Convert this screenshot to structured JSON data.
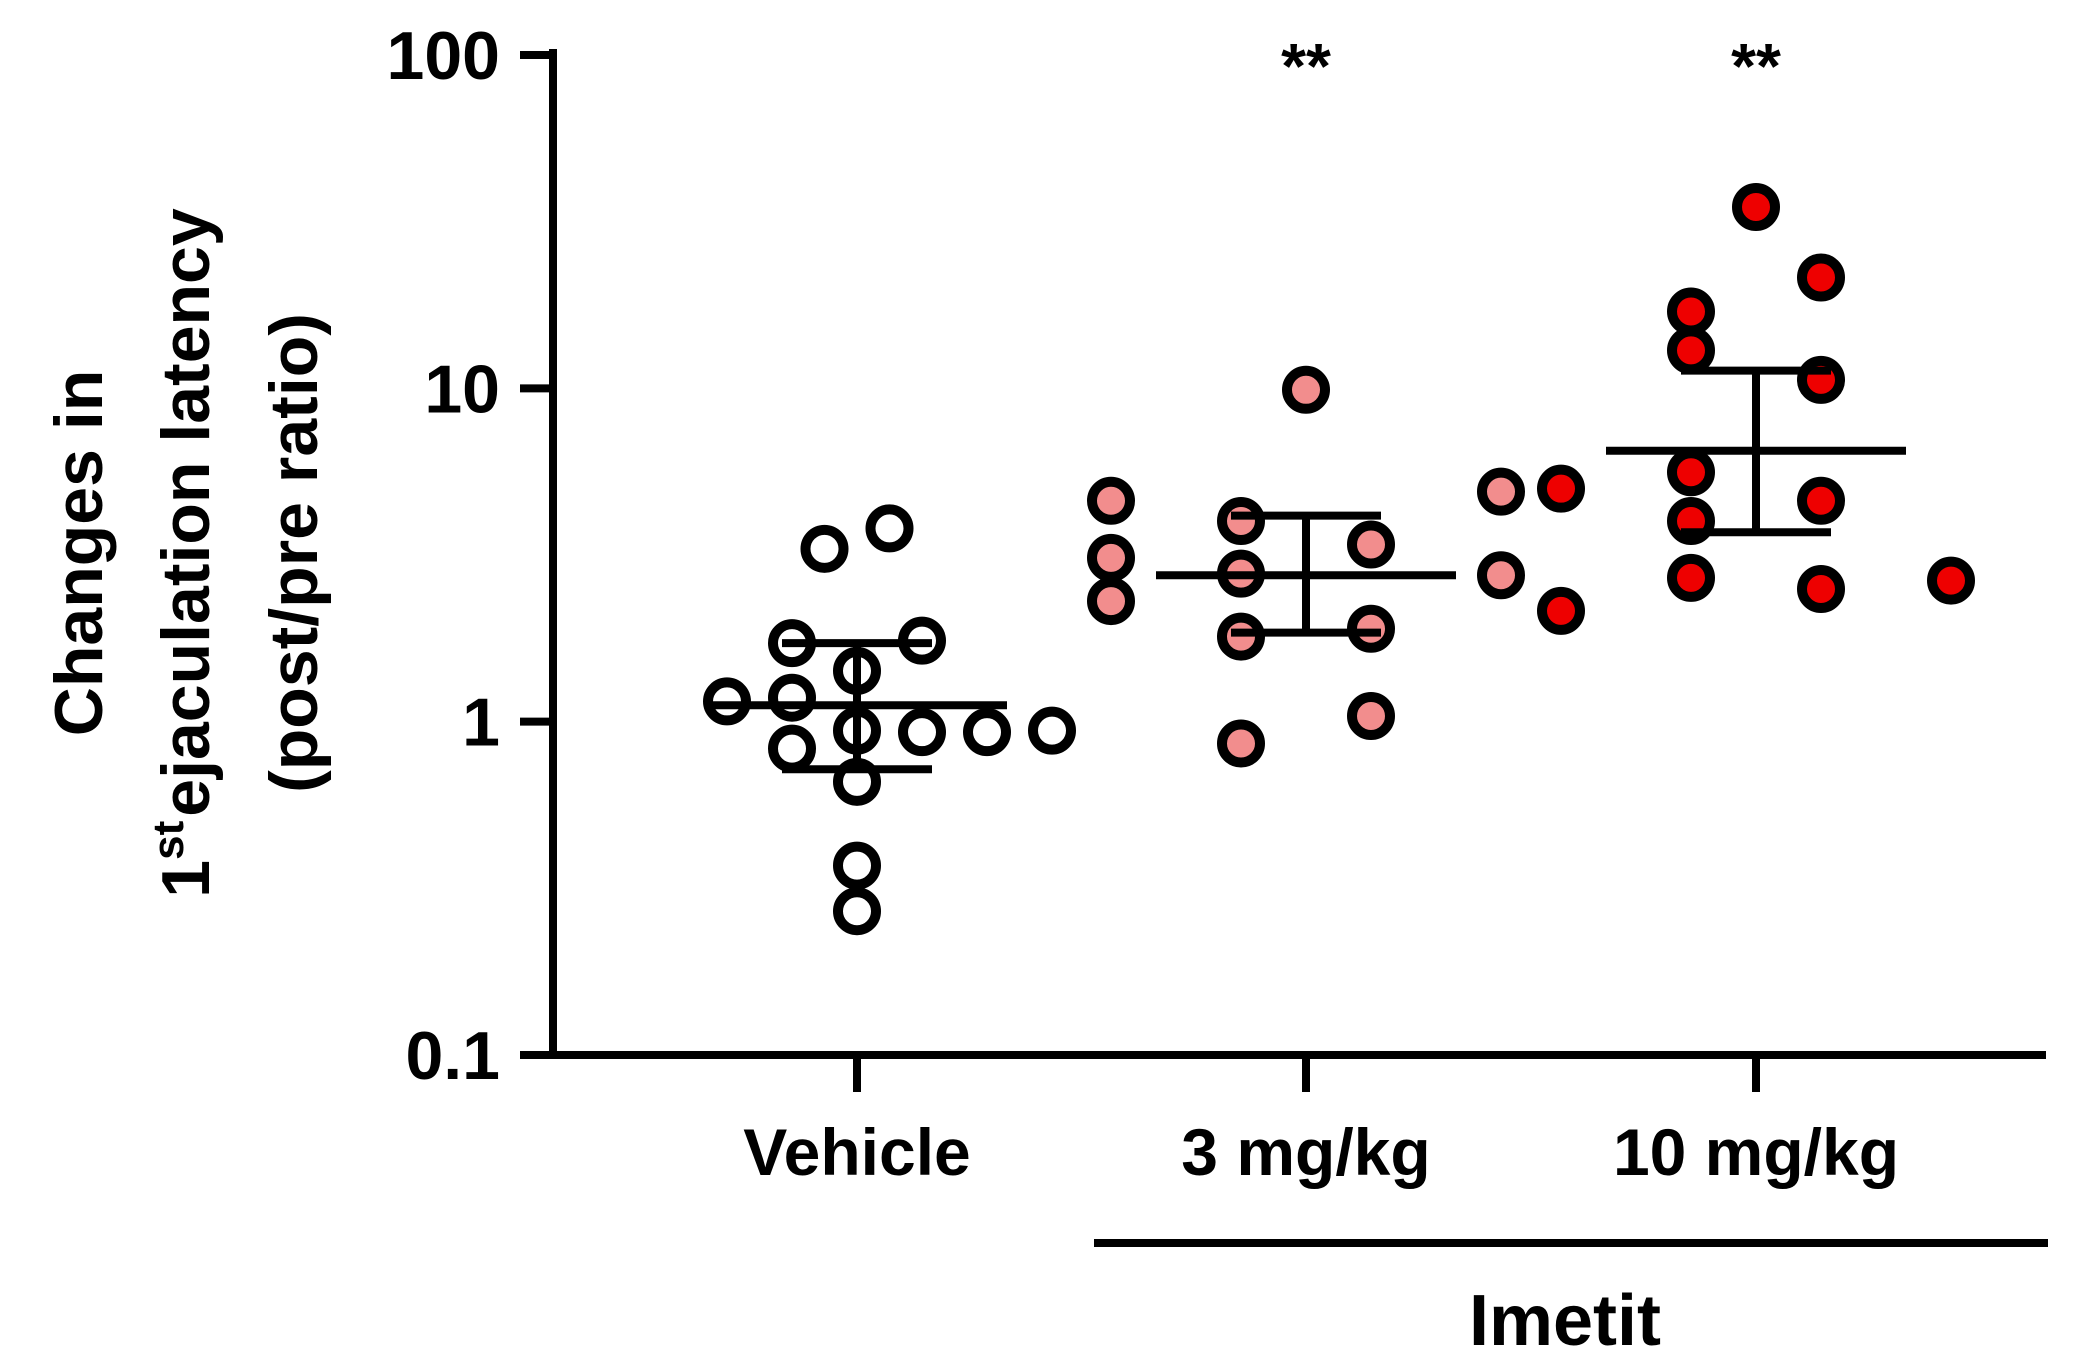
{
  "chart_data": {
    "type": "scatter",
    "scale": "log",
    "ylabel_lines": [
      "Changes in",
      "ejaculation latency",
      "(post/pre ratio)"
    ],
    "ylabel_prefix": "1",
    "ylabel_superscript": "st",
    "yticks": [
      {
        "value": 0.1,
        "label": "0.1"
      },
      {
        "value": 1,
        "label": "1"
      },
      {
        "value": 10,
        "label": "10"
      },
      {
        "value": 100,
        "label": "100"
      }
    ],
    "ylim": [
      0.1,
      100
    ],
    "categories": [
      "Vehicle",
      "3 mg/kg",
      "10 mg/kg"
    ],
    "group_label": "Imetit",
    "groups": [
      {
        "name": "Vehicle",
        "fill": "#ffffff",
        "significance": "",
        "mean": 1.12,
        "err_low": 0.72,
        "err_high": 1.72,
        "points": [
          {
            "offset": 0,
            "value": 0.27
          },
          {
            "offset": 0,
            "value": 0.37
          },
          {
            "offset": 0,
            "value": 0.66
          },
          {
            "offset": -1,
            "value": 0.83
          },
          {
            "offset": 1,
            "value": 0.93
          },
          {
            "offset": 2,
            "value": 0.93
          },
          {
            "offset": 3,
            "value": 0.94
          },
          {
            "offset": 0,
            "value": 0.94
          },
          {
            "offset": -2,
            "value": 1.15
          },
          {
            "offset": -1,
            "value": 1.18
          },
          {
            "offset": 0,
            "value": 1.42
          },
          {
            "offset": -1,
            "value": 1.72
          },
          {
            "offset": 1,
            "value": 1.75
          },
          {
            "offset": -0.5,
            "value": 3.3
          },
          {
            "offset": 0.5,
            "value": 3.8
          }
        ]
      },
      {
        "name": "3 mg/kg",
        "fill": "#f28d8d",
        "significance": "**",
        "mean": 2.75,
        "err_low": 1.85,
        "err_high": 4.15,
        "points": [
          {
            "offset": -1,
            "value": 0.86
          },
          {
            "offset": 1,
            "value": 1.04
          },
          {
            "offset": -1,
            "value": 1.8
          },
          {
            "offset": 1,
            "value": 1.9
          },
          {
            "offset": -3,
            "value": 2.3
          },
          {
            "offset": -1,
            "value": 2.78
          },
          {
            "offset": 3,
            "value": 2.75
          },
          {
            "offset": -3,
            "value": 3.1
          },
          {
            "offset": 1,
            "value": 3.4
          },
          {
            "offset": -1,
            "value": 4.0
          },
          {
            "offset": -3,
            "value": 4.6
          },
          {
            "offset": 3,
            "value": 4.9
          },
          {
            "offset": 0,
            "value": 9.9
          }
        ]
      },
      {
        "name": "10 mg/kg",
        "fill": "#ee0000",
        "significance": "**",
        "mean": 6.5,
        "err_low": 3.7,
        "err_high": 11.3,
        "points": [
          {
            "offset": -3,
            "value": 2.15
          },
          {
            "offset": 1,
            "value": 2.5
          },
          {
            "offset": 3,
            "value": 2.65
          },
          {
            "offset": -1,
            "value": 2.7
          },
          {
            "offset": -1,
            "value": 4.0
          },
          {
            "offset": 1,
            "value": 4.6
          },
          {
            "offset": -3,
            "value": 5.0
          },
          {
            "offset": -1,
            "value": 5.6
          },
          {
            "offset": 1,
            "value": 10.6
          },
          {
            "offset": -1,
            "value": 13.0
          },
          {
            "offset": -1,
            "value": 17.0
          },
          {
            "offset": 1,
            "value": 21.5
          },
          {
            "offset": 0,
            "value": 35.0
          }
        ]
      }
    ]
  }
}
